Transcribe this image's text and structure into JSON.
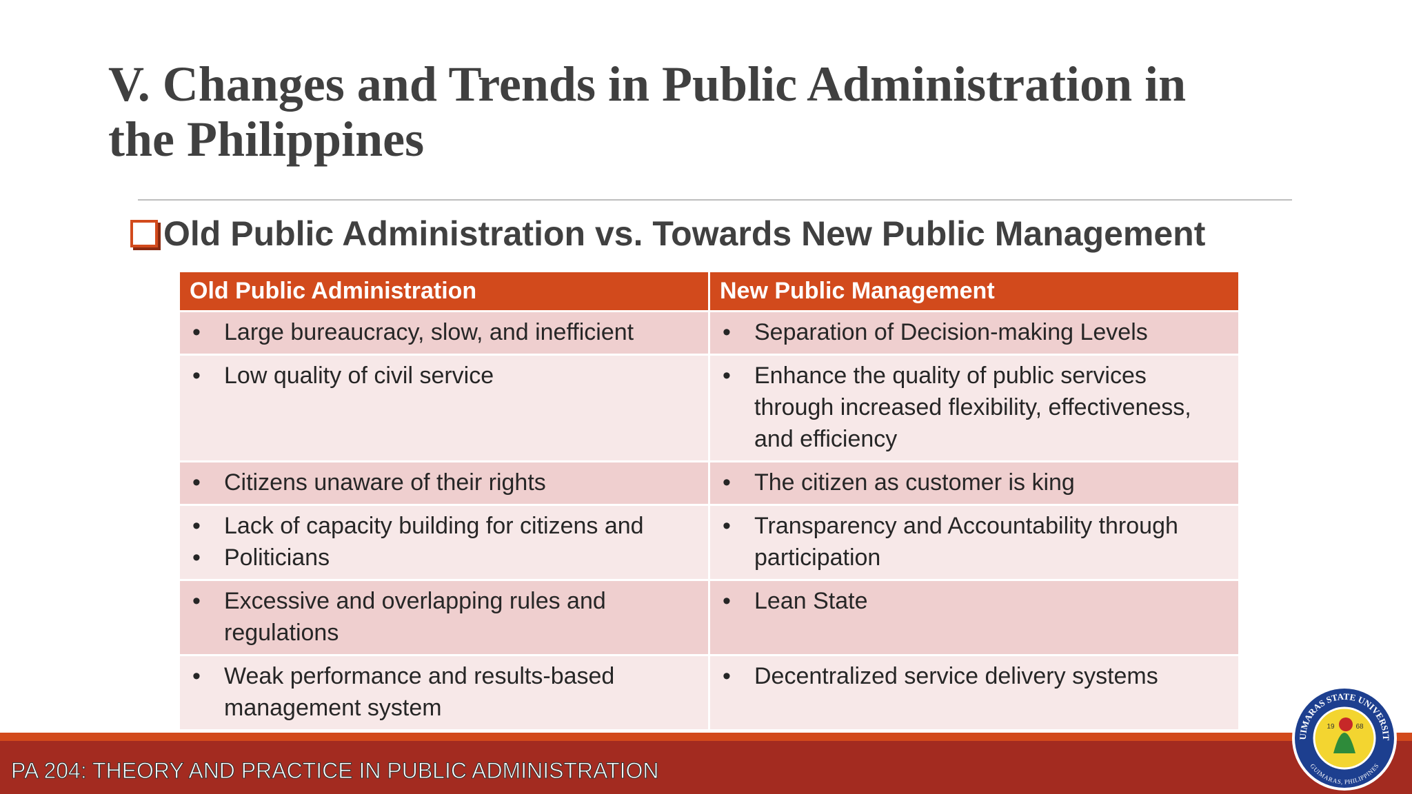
{
  "title": [
    "V. Changes and Trends in Public Administration in",
    "the Philippines"
  ],
  "subtitle": "Old Public Administration vs. Towards New Public Management",
  "table": {
    "headers": [
      "Old Public Administration",
      "New Public Management"
    ],
    "rows": [
      [
        [
          "Large bureaucracy, slow, and inefficient"
        ],
        [
          "Separation of Decision-making Levels"
        ]
      ],
      [
        [
          "Low quality of civil service"
        ],
        [
          "Enhance the quality of public services through increased flexibility, effectiveness, and efficiency"
        ]
      ],
      [
        [
          "Citizens unaware of their rights"
        ],
        [
          "The citizen as customer is king"
        ]
      ],
      [
        [
          "Lack of capacity building for citizens and",
          "Politicians"
        ],
        [
          "Transparency and Accountability through participation"
        ]
      ],
      [
        [
          "Excessive and overlapping rules and regulations"
        ],
        [
          "Lean State"
        ]
      ],
      [
        [
          "Weak performance and results-based management system"
        ],
        [
          "Decentralized service delivery systems"
        ]
      ]
    ]
  },
  "footer": "PA 204: THEORY AND PRACTICE IN PUBLIC ADMINISTRATION",
  "logo": {
    "name": "GUIMARAS STATE UNIVERSITY",
    "year_left": "19",
    "year_right": "68",
    "place": "GUIMARAS, PHILIPPINES"
  }
}
